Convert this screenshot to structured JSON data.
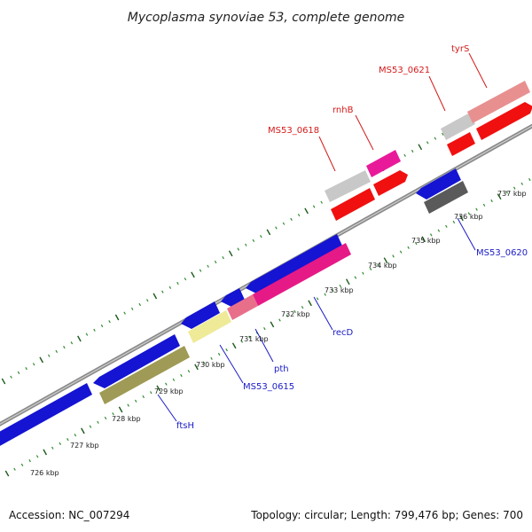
{
  "title": "Mycoplasma synoviae 53, complete genome",
  "footer": {
    "accession": "Accession: NC_007294",
    "summary": "Topology: circular; Length: 799,476 bp; Genes: 700"
  },
  "colors": {
    "background": "#ffffff",
    "backbone": "#8a8a8a",
    "tick_minor": "#2e8b2e",
    "tick_major": "#1a5a1a",
    "label_forward": "#d41a1a",
    "label_reverse": "#1a1ac8"
  },
  "scale": {
    "unit": "kbp",
    "tick_labels": [
      "726 kbp",
      "727 kbp",
      "728 kbp",
      "729 kbp",
      "730 kbp",
      "731 kbp",
      "732 kbp",
      "733 kbp",
      "734 kbp",
      "735 kbp",
      "736 kbp",
      "737 kbp"
    ]
  },
  "gene_labels": [
    {
      "text": "tyrS",
      "strand": "forward"
    },
    {
      "text": "MS53_0621",
      "strand": "forward"
    },
    {
      "text": "rnhB",
      "strand": "forward"
    },
    {
      "text": "MS53_0618",
      "strand": "forward"
    },
    {
      "text": "MS53_0620",
      "strand": "reverse"
    },
    {
      "text": "recD",
      "strand": "reverse"
    },
    {
      "text": "pth",
      "strand": "reverse"
    },
    {
      "text": "MS53_0615",
      "strand": "reverse"
    },
    {
      "text": "ftsH",
      "strand": "reverse"
    }
  ]
}
